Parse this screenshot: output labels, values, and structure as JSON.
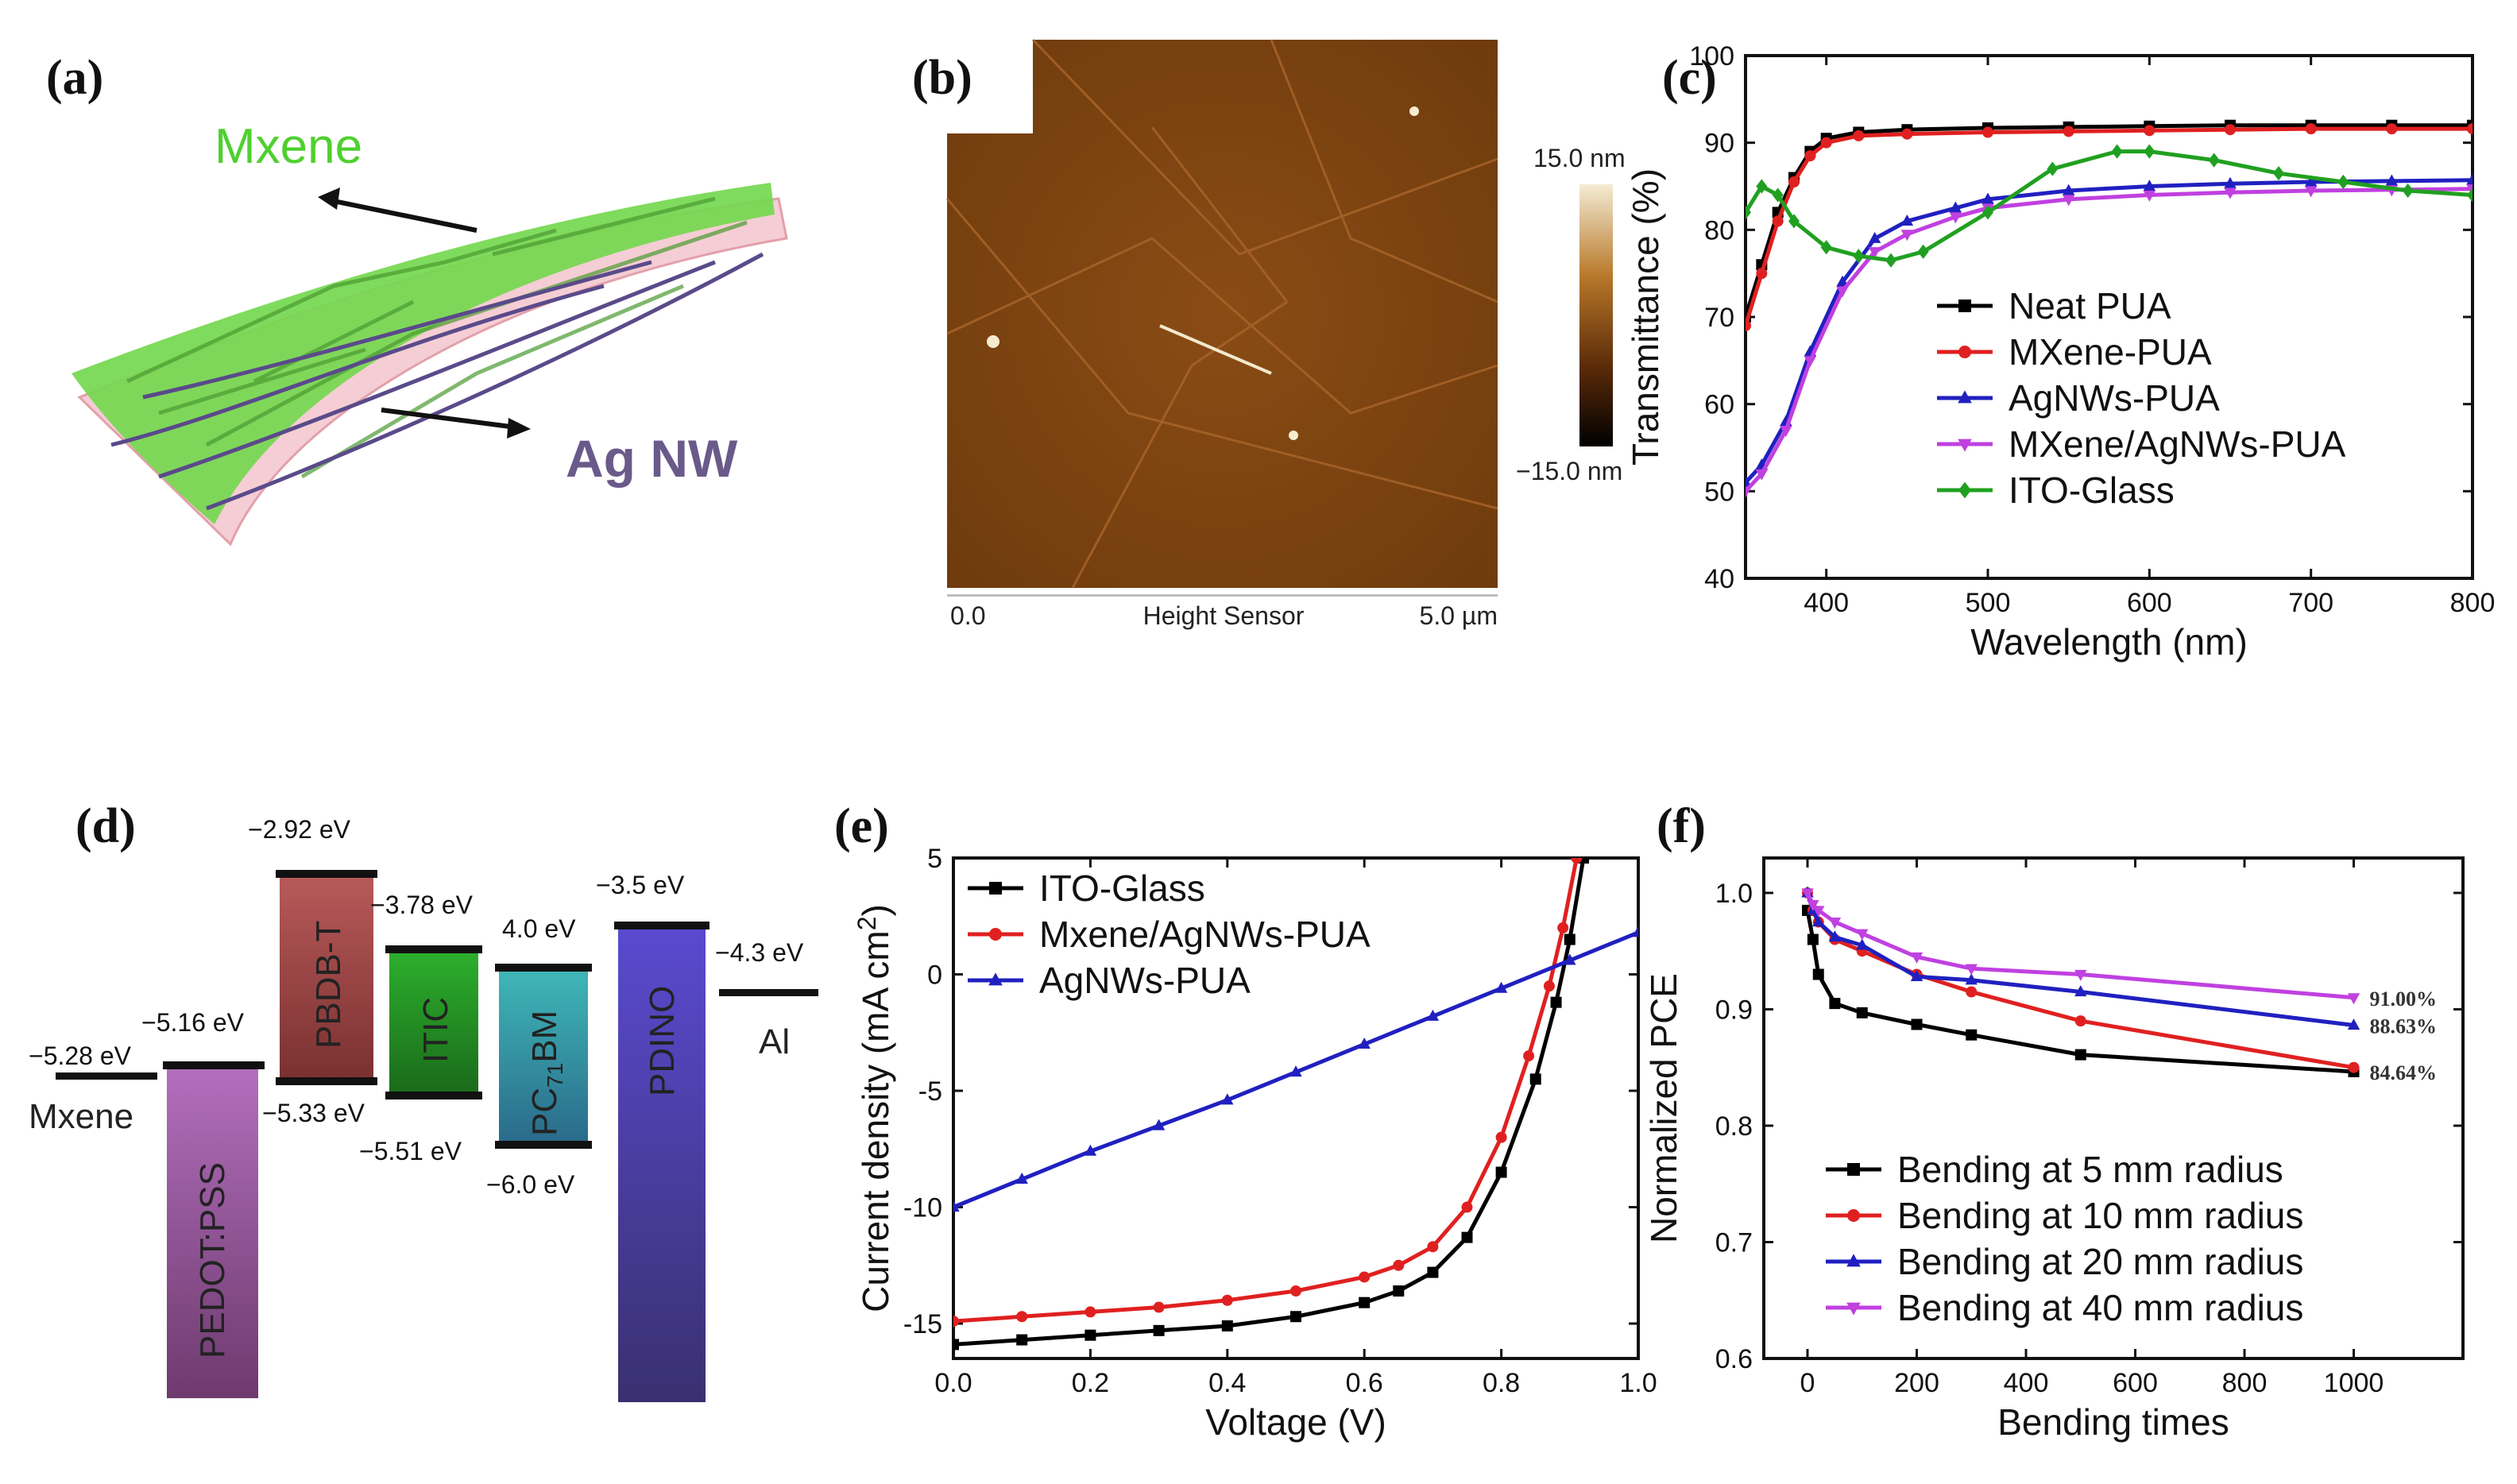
{
  "panels": {
    "a": {
      "label": "(a)",
      "mxene_label": "Mxene",
      "agnw_label": "Ag NW",
      "colors": {
        "mxene": "#5fcf3f",
        "agnw": "#6a5a8a",
        "substrate": "#f3c9cf"
      }
    },
    "b": {
      "label": "(b)",
      "scale_top": "15.0 nm",
      "scale_bottom": "−15.0 nm",
      "axis_left": "0.0",
      "axis_center": "Height Sensor",
      "axis_right": "5.0 µm",
      "colors": {
        "dark": "#3a1a05",
        "mid": "#8b4a12",
        "light": "#e8d8b0"
      }
    },
    "d": {
      "label": "(d)",
      "levels": [
        {
          "name": "Mxene",
          "top": "−5.28 eV"
        },
        {
          "name": "PEDOT:PSS",
          "top": "−5.16 eV",
          "color": "#9a5a9a"
        },
        {
          "name": "PBDB-T",
          "top": "−2.92 eV",
          "bottom": "−5.33 eV",
          "color": "#a85252"
        },
        {
          "name": "ITIC",
          "top": "−3.78 eV",
          "bottom": "−5.51 eV",
          "color": "#3a9a3a"
        },
        {
          "name": "PC",
          "sub": "71",
          "suffix": "BM",
          "top": "4.0 eV",
          "bottom": "−6.0 eV",
          "color": "#3a9a9a"
        },
        {
          "name": "PDINO",
          "top": "−3.5 eV",
          "color": "#5a4ab0"
        },
        {
          "name": "Al",
          "top": "−4.3 eV"
        }
      ]
    }
  },
  "chart_data": [
    {
      "panel": "(c)",
      "type": "line",
      "xlabel": "Wavelength (nm)",
      "ylabel": "Transmittance (%)",
      "xlim": [
        350,
        800
      ],
      "ylim": [
        40,
        100
      ],
      "xticks": [
        400,
        500,
        600,
        700,
        800
      ],
      "yticks": [
        40,
        50,
        60,
        70,
        80,
        90,
        100
      ],
      "series": [
        {
          "name": "Neat PUA",
          "color": "#000000",
          "marker": "square",
          "x": [
            350,
            360,
            370,
            380,
            390,
            400,
            420,
            450,
            500,
            550,
            600,
            650,
            700,
            750,
            800
          ],
          "y": [
            70,
            76,
            82,
            86,
            89,
            90.5,
            91.2,
            91.5,
            91.7,
            91.8,
            91.9,
            92,
            92,
            92,
            92
          ]
        },
        {
          "name": "MXene-PUA",
          "color": "#e02020",
          "marker": "circle",
          "x": [
            350,
            360,
            370,
            380,
            390,
            400,
            420,
            450,
            500,
            550,
            600,
            650,
            700,
            750,
            800
          ],
          "y": [
            69,
            75,
            81,
            85.5,
            88.5,
            90,
            90.8,
            91,
            91.2,
            91.3,
            91.4,
            91.5,
            91.6,
            91.6,
            91.6
          ]
        },
        {
          "name": "AgNWs-PUA",
          "color": "#2020c0",
          "marker": "triangle",
          "x": [
            350,
            360,
            375,
            390,
            410,
            430,
            450,
            480,
            500,
            550,
            600,
            650,
            700,
            750,
            800
          ],
          "y": [
            51,
            53,
            58,
            66,
            74,
            79,
            81,
            82.5,
            83.5,
            84.5,
            85,
            85.3,
            85.5,
            85.6,
            85.7
          ]
        },
        {
          "name": "MXene/AgNWs-PUA",
          "color": "#c040e0",
          "marker": "triangle-down",
          "x": [
            350,
            360,
            375,
            390,
            410,
            430,
            450,
            480,
            500,
            550,
            600,
            650,
            700,
            750,
            800
          ],
          "y": [
            50,
            52,
            57,
            65,
            73,
            77.5,
            79.5,
            81.5,
            82.5,
            83.5,
            84,
            84.3,
            84.5,
            84.6,
            84.7
          ]
        },
        {
          "name": "ITO-Glass",
          "color": "#20a020",
          "marker": "diamond",
          "x": [
            350,
            360,
            370,
            380,
            400,
            420,
            440,
            460,
            500,
            540,
            580,
            600,
            640,
            680,
            720,
            760,
            800
          ],
          "y": [
            82,
            85,
            84,
            81,
            78,
            77,
            76.5,
            77.5,
            82,
            87,
            89,
            89,
            88,
            86.5,
            85.5,
            84.5,
            84
          ]
        }
      ]
    },
    {
      "panel": "(e)",
      "type": "line",
      "xlabel": "Voltage (V)",
      "ylabel": "Current density (mA cm",
      "ylabel_sup": "2",
      "ylabel_end": ")",
      "xlim": [
        0.0,
        1.0
      ],
      "ylim": [
        -16.5,
        5
      ],
      "xticks": [
        0.0,
        0.2,
        0.4,
        0.6,
        0.8,
        1.0
      ],
      "yticks": [
        5,
        0,
        -5,
        -10,
        -15
      ],
      "series": [
        {
          "name": "ITO-Glass",
          "color": "#000000",
          "marker": "square",
          "x": [
            0.0,
            0.1,
            0.2,
            0.3,
            0.4,
            0.5,
            0.6,
            0.65,
            0.7,
            0.75,
            0.8,
            0.85,
            0.88,
            0.9,
            0.92
          ],
          "y": [
            -15.9,
            -15.7,
            -15.5,
            -15.3,
            -15.1,
            -14.7,
            -14.1,
            -13.6,
            -12.8,
            -11.3,
            -8.5,
            -4.5,
            -1.2,
            1.5,
            5
          ]
        },
        {
          "name": "Mxene/AgNWs-PUA",
          "color": "#e02020",
          "marker": "circle",
          "x": [
            0.0,
            0.1,
            0.2,
            0.3,
            0.4,
            0.5,
            0.6,
            0.65,
            0.7,
            0.75,
            0.8,
            0.84,
            0.87,
            0.89,
            0.91
          ],
          "y": [
            -14.9,
            -14.7,
            -14.5,
            -14.3,
            -14.0,
            -13.6,
            -13.0,
            -12.5,
            -11.7,
            -10.0,
            -7.0,
            -3.5,
            -0.5,
            2,
            5
          ]
        },
        {
          "name": "AgNWs-PUA",
          "color": "#2020c0",
          "marker": "triangle",
          "x": [
            0.0,
            0.1,
            0.2,
            0.3,
            0.4,
            0.5,
            0.6,
            0.7,
            0.8,
            0.9,
            1.0
          ],
          "y": [
            -10,
            -8.8,
            -7.6,
            -6.5,
            -5.4,
            -4.2,
            -3.0,
            -1.8,
            -0.6,
            0.6,
            1.8
          ]
        }
      ]
    },
    {
      "panel": "(f)",
      "type": "line",
      "xlabel": "Bending times",
      "ylabel": "Normalized PCE",
      "xlim": [
        -80,
        1200
      ],
      "ylim": [
        0.6,
        1.03
      ],
      "xticks": [
        0,
        200,
        400,
        600,
        800,
        1000
      ],
      "yticks": [
        0.6,
        0.7,
        0.8,
        0.9,
        1.0
      ],
      "annotations": [
        "91.00%",
        "88.63%",
        "84.64%"
      ],
      "series": [
        {
          "name": "Bending at 5 mm radius",
          "color": "#000000",
          "marker": "square",
          "x": [
            0,
            10,
            20,
            50,
            100,
            200,
            300,
            500,
            1000
          ],
          "y": [
            0.985,
            0.96,
            0.93,
            0.905,
            0.897,
            0.887,
            0.878,
            0.861,
            0.8464
          ]
        },
        {
          "name": "Bending at 10 mm radius",
          "color": "#e02020",
          "marker": "circle",
          "x": [
            0,
            10,
            20,
            50,
            100,
            200,
            300,
            500,
            1000
          ],
          "y": [
            1.0,
            0.985,
            0.975,
            0.96,
            0.95,
            0.93,
            0.915,
            0.89,
            0.85
          ]
        },
        {
          "name": "Bending at 20 mm radius",
          "color": "#2020c0",
          "marker": "triangle",
          "x": [
            0,
            10,
            20,
            50,
            100,
            200,
            300,
            500,
            1000
          ],
          "y": [
            1.0,
            0.985,
            0.975,
            0.962,
            0.955,
            0.928,
            0.925,
            0.915,
            0.8863
          ]
        },
        {
          "name": "Bending at 40 mm radius",
          "color": "#c040e0",
          "marker": "triangle-down",
          "x": [
            0,
            10,
            20,
            50,
            100,
            200,
            300,
            500,
            1000
          ],
          "y": [
            1.0,
            0.99,
            0.985,
            0.975,
            0.965,
            0.945,
            0.935,
            0.93,
            0.91
          ]
        }
      ]
    }
  ]
}
